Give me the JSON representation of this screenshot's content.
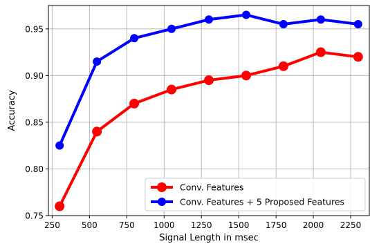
{
  "chart_data": {
    "type": "line",
    "xlabel": "Signal Length in msec",
    "ylabel": "Accuracy",
    "xlim": [
      225,
      2375
    ],
    "ylim": [
      0.75,
      0.975
    ],
    "xticks": [
      250,
      500,
      750,
      1000,
      1250,
      1500,
      1750,
      2000,
      2250
    ],
    "yticks": [
      0.75,
      0.8,
      0.85,
      0.9,
      0.95
    ],
    "xtick_labels": [
      "250",
      "500",
      "750",
      "1000",
      "1250",
      "1500",
      "1750",
      "2000",
      "2250"
    ],
    "ytick_labels": [
      "0.75",
      "0.80",
      "0.85",
      "0.90",
      "0.95"
    ],
    "grid": true,
    "legend_position": "lower-right",
    "x": [
      300,
      550,
      800,
      1050,
      1300,
      1550,
      1800,
      2050,
      2300
    ],
    "series": [
      {
        "name": "Conv. Features",
        "color": "#ff0000",
        "values": [
          0.76,
          0.84,
          0.87,
          0.885,
          0.895,
          0.9,
          0.91,
          0.925,
          0.92
        ]
      },
      {
        "name": "Conv. Features + 5 Proposed Features",
        "color": "#0000ff",
        "values": [
          0.825,
          0.915,
          0.94,
          0.95,
          0.96,
          0.965,
          0.955,
          0.96,
          0.955
        ]
      }
    ]
  }
}
